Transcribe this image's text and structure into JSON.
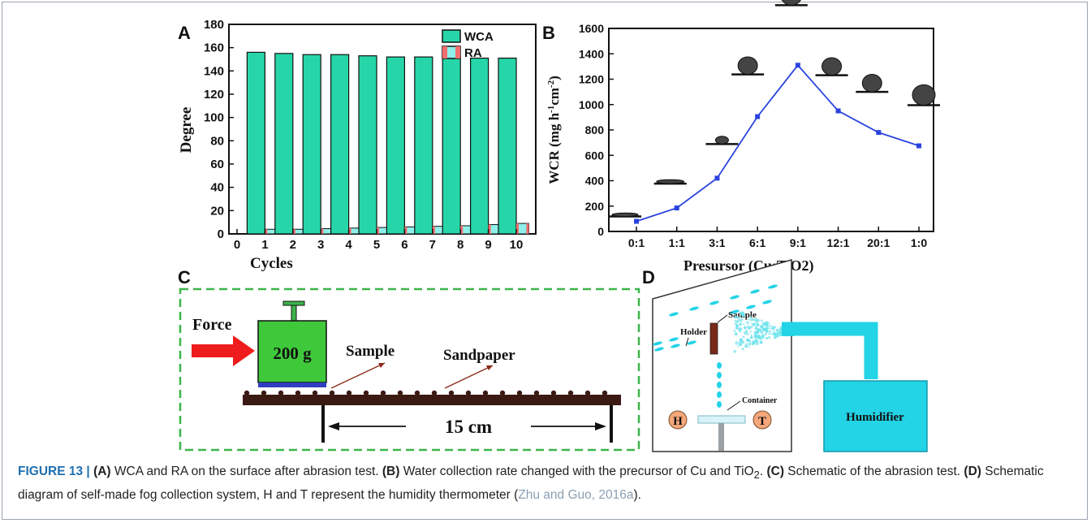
{
  "panelA": {
    "label": "A",
    "ylabel": "Degree",
    "xlabel": "Cycles",
    "legend": [
      "WCA",
      "RA"
    ],
    "chart_data": {
      "type": "bar",
      "categories": [
        "1",
        "2",
        "3",
        "4",
        "5",
        "6",
        "7",
        "8",
        "9",
        "10"
      ],
      "series": [
        {
          "name": "WCA",
          "values": [
            156,
            155,
            154,
            154,
            153,
            152,
            152,
            152,
            151,
            151
          ]
        },
        {
          "name": "RA",
          "values": [
            4,
            4,
            4.5,
            5,
            5.5,
            6,
            6.5,
            7,
            8,
            9
          ]
        }
      ],
      "xticks": [
        "0",
        "1",
        "2",
        "3",
        "4",
        "5",
        "6",
        "7",
        "8",
        "9",
        "10"
      ],
      "yticks": [
        "0",
        "20",
        "40",
        "60",
        "80",
        "100",
        "120",
        "140",
        "160",
        "180"
      ],
      "ylim": [
        0,
        180
      ],
      "colors": {
        "WCA": "#27d6a8",
        "RA": "#f26d6d"
      }
    }
  },
  "panelB": {
    "label": "B",
    "ylabel": "WCR (mg h-1cm-2)",
    "ylabel_parts": {
      "pre": "WCR (mg h",
      "sup1": "-1",
      "mid": "cm",
      "sup2": "-2",
      "post": ")"
    },
    "xlabel": "Presursor (Cu:TiO2)",
    "chart_data": {
      "type": "line",
      "categories": [
        "0:1",
        "1:1",
        "3:1",
        "6:1",
        "9:1",
        "12:1",
        "20:1",
        "1:0"
      ],
      "values": [
        80,
        185,
        420,
        905,
        1310,
        950,
        780,
        675
      ],
      "yticks": [
        "0",
        "200",
        "400",
        "600",
        "800",
        "1000",
        "1200",
        "1400",
        "1600"
      ],
      "ylim": [
        0,
        1600
      ],
      "color": "#2a43e0"
    }
  },
  "panelC": {
    "label": "C",
    "force": "Force",
    "weight": "200 g",
    "sample": "Sample",
    "sandpaper": "Sandpaper",
    "distance": "15 cm"
  },
  "panelD": {
    "label": "D",
    "sample": "Sample",
    "holder": "Holder",
    "container": "Container",
    "h": "H",
    "t": "T",
    "humidifier": "Humidifier"
  },
  "caption": {
    "figure": "FIGURE 13 |",
    "a_tag": "(A)",
    "a_text": " WCA and RA on the surface after abrasion test. ",
    "b_tag": "(B)",
    "b_text_pre": " Water collection rate changed with the precursor of Cu and TiO",
    "b_sub": "2",
    "b_text_post": ". ",
    "c_tag": "(C)",
    "c_text": " Schematic of the abrasion test. ",
    "d_tag": "(D)",
    "d_text": " Schematic diagram of self-made fog collection system, H and T represent the humidity thermometer (",
    "cite": "Zhu and Guo, 2016a",
    "end": ")."
  }
}
